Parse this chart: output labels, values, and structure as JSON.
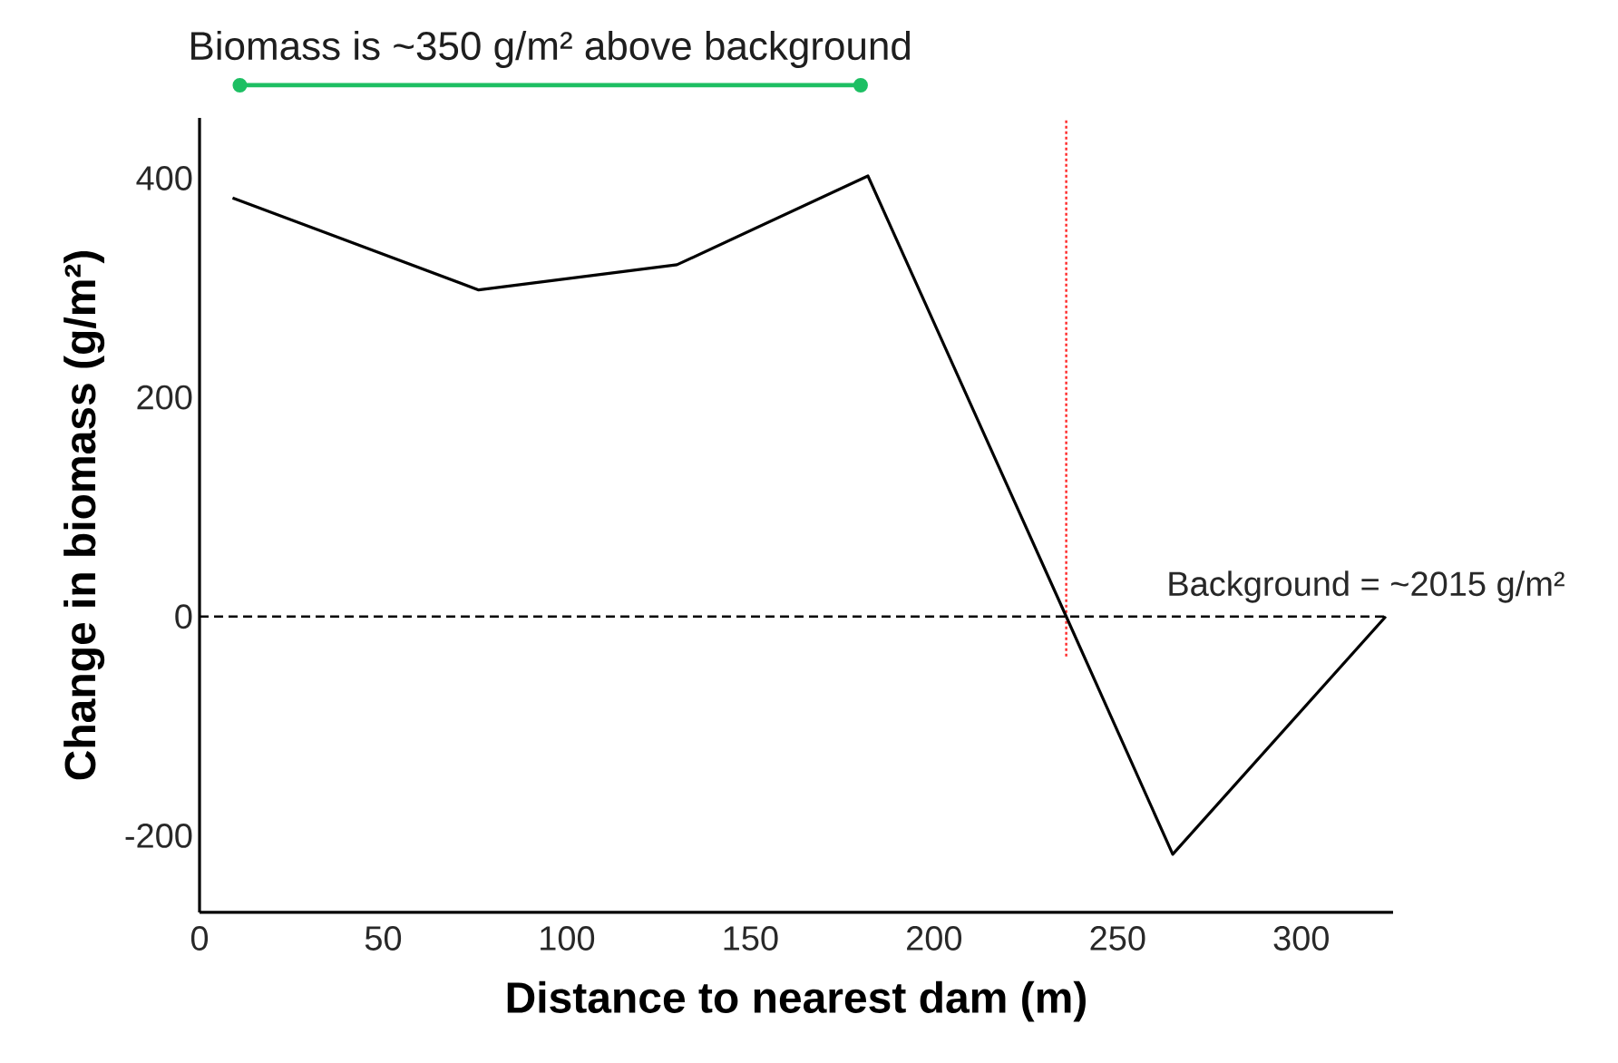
{
  "chart_data": {
    "type": "line",
    "xlabel": "Distance to nearest dam (m)",
    "ylabel": "Change in biomass (g/m²)",
    "x": [
      9,
      76,
      130,
      182,
      236,
      265,
      323
    ],
    "values": [
      382,
      298,
      321,
      402,
      0,
      -217,
      0
    ],
    "color": "#000000",
    "xlim": [
      0,
      325
    ],
    "ylim": [
      -270,
      455
    ],
    "xticks": [
      0,
      50,
      100,
      150,
      200,
      250,
      300
    ],
    "yticks": [
      -200,
      0,
      200,
      400
    ],
    "grid": false,
    "marker": "none",
    "line_style": "solid",
    "ref_lines": [
      {
        "axis": "y",
        "value": 0,
        "label": "Background = ~2015 g/m²",
        "color": "#000000",
        "line_style": "dashed"
      },
      {
        "axis": "x",
        "value": 236,
        "color": "#ff2a2a",
        "line_style": "dotted"
      }
    ],
    "annotations": [
      "Biomass is ~350 g/m² above background"
    ]
  }
}
